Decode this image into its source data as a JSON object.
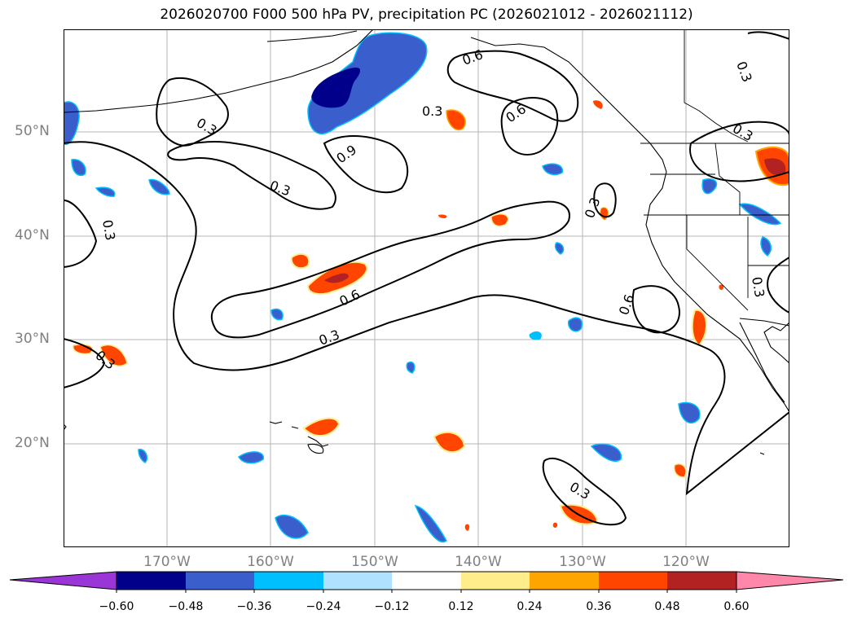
{
  "title": "2026020700 F000 500 hPa PV, precipitation PC (2026021012 - 2026021112)",
  "lat_labels": [
    "50°N",
    "40°N",
    "30°N",
    "20°N"
  ],
  "lon_labels": [
    "170°W",
    "160°W",
    "150°W",
    "140°W",
    "130°W",
    "120°W"
  ],
  "contour_labels": [
    "0.3",
    "0.6",
    "0.9"
  ],
  "colorbar": {
    "ticks": [
      "−0.60",
      "−0.48",
      "−0.36",
      "−0.24",
      "−0.12",
      "0.12",
      "0.24",
      "0.36",
      "0.48",
      "0.60"
    ],
    "colors": [
      "#9a35d8",
      "#00008b",
      "#3a5fcd",
      "#00bfff",
      "#b0e2ff",
      "#ffffff",
      "#ffec8b",
      "#ffa500",
      "#ff4500",
      "#b22222",
      "#ff88aa"
    ]
  }
}
